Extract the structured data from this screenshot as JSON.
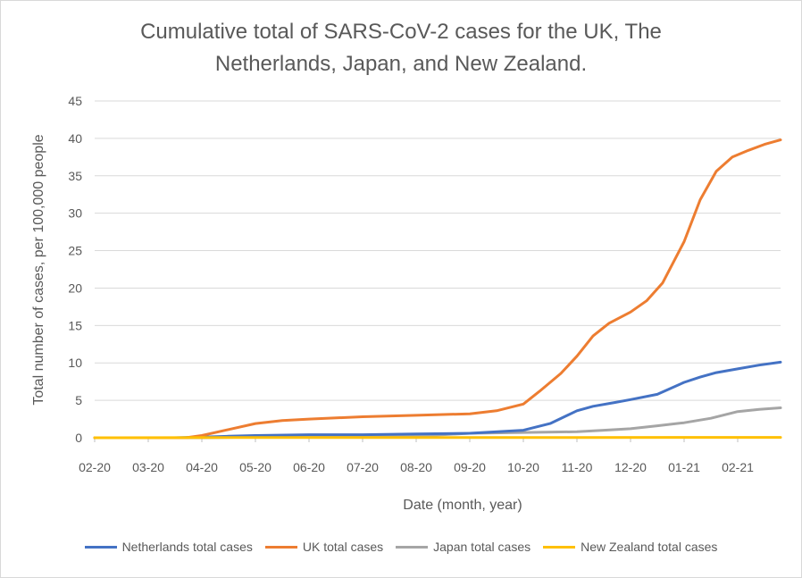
{
  "chart_data": {
    "type": "line",
    "title_lines": [
      "Cumulative total of SARS-CoV-2 cases for the UK, The",
      "Netherlands, Japan, and New Zealand."
    ],
    "xlabel": "Date (month, year)",
    "ylabel": "Total number of cases, per 100,000 people",
    "x_range": [
      0,
      12.8
    ],
    "ylim": [
      0,
      45
    ],
    "yticks": [
      "0",
      "5",
      "10",
      "15",
      "20",
      "25",
      "30",
      "35",
      "40",
      "45"
    ],
    "ytick_values": [
      0,
      5,
      10,
      15,
      20,
      25,
      30,
      35,
      40,
      45
    ],
    "categories": [
      "02-20",
      "03-20",
      "04-20",
      "05-20",
      "06-20",
      "07-20",
      "08-20",
      "09-20",
      "10-20",
      "11-20",
      "12-20",
      "01-21",
      "02-21"
    ],
    "grid": true,
    "legend_position": "bottom",
    "series": [
      {
        "name": "Netherlands total cases",
        "color": "#4472c4",
        "x": [
          0,
          1.5,
          2,
          2.5,
          3,
          4,
          5,
          6,
          7,
          8,
          8.5,
          9,
          9.3,
          9.7,
          10,
          10.5,
          11,
          11.3,
          11.6,
          12,
          12.4,
          12.8
        ],
        "y": [
          0,
          0,
          0.1,
          0.2,
          0.3,
          0.4,
          0.4,
          0.5,
          0.6,
          1.0,
          1.9,
          3.6,
          4.2,
          4.7,
          5.1,
          5.8,
          7.4,
          8.1,
          8.7,
          9.2,
          9.7,
          10.1
        ]
      },
      {
        "name": "UK total cases",
        "color": "#ed7d31",
        "x": [
          0,
          1.7,
          2,
          2.5,
          3,
          3.5,
          4,
          5,
          6,
          7,
          7.5,
          8,
          8.3,
          8.7,
          9,
          9.3,
          9.6,
          10,
          10.3,
          10.6,
          11,
          11.3,
          11.6,
          11.9,
          12.2,
          12.5,
          12.8
        ],
        "y": [
          0,
          0,
          0.3,
          1.1,
          1.9,
          2.3,
          2.5,
          2.8,
          3.0,
          3.2,
          3.6,
          4.5,
          6.2,
          8.6,
          10.9,
          13.6,
          15.3,
          16.8,
          18.3,
          20.7,
          26.2,
          31.8,
          35.6,
          37.5,
          38.4,
          39.2,
          39.8
        ]
      },
      {
        "name": "Japan total cases",
        "color": "#a5a5a5",
        "x": [
          0,
          2,
          3,
          4,
          5,
          6,
          6.5,
          7,
          8,
          9,
          9.5,
          10,
          10.5,
          11,
          11.5,
          12,
          12.4,
          12.8
        ],
        "y": [
          0,
          0,
          0.1,
          0.1,
          0.2,
          0.2,
          0.4,
          0.6,
          0.7,
          0.8,
          1.0,
          1.2,
          1.6,
          2.0,
          2.6,
          3.5,
          3.8,
          4.0
        ]
      },
      {
        "name": "New Zealand total cases",
        "color": "#ffc000",
        "x": [
          0,
          3,
          6,
          9,
          12,
          12.8
        ],
        "y": [
          0,
          0.03,
          0.03,
          0.04,
          0.05,
          0.05
        ]
      }
    ]
  }
}
